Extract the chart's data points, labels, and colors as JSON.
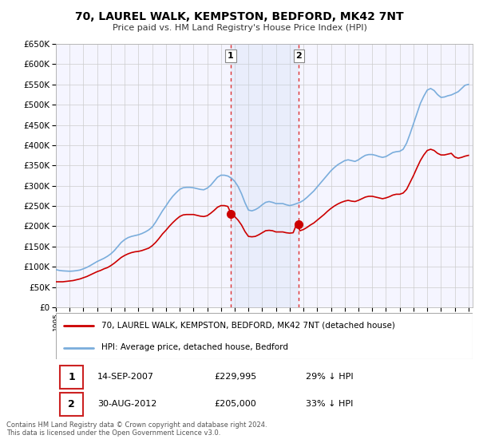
{
  "title": "70, LAUREL WALK, KEMPSTON, BEDFORD, MK42 7NT",
  "subtitle": "Price paid vs. HM Land Registry's House Price Index (HPI)",
  "ylim": [
    0,
    650000
  ],
  "yticks": [
    0,
    50000,
    100000,
    150000,
    200000,
    250000,
    300000,
    350000,
    400000,
    450000,
    500000,
    550000,
    600000,
    650000
  ],
  "xlim_start": 1995.0,
  "xlim_end": 2025.3,
  "plot_background": "#f5f5ff",
  "grid_color": "#cccccc",
  "hpi_color": "#7aaddc",
  "price_color": "#cc0000",
  "sale1_year": 2007.71,
  "sale1_price": 229995,
  "sale2_year": 2012.66,
  "sale2_price": 205000,
  "sale1_label": "1",
  "sale2_label": "2",
  "annotation1_date": "14-SEP-2007",
  "annotation1_price": "£229,995",
  "annotation1_note": "29% ↓ HPI",
  "annotation2_date": "30-AUG-2012",
  "annotation2_price": "£205,000",
  "annotation2_note": "33% ↓ HPI",
  "legend_line1": "70, LAUREL WALK, KEMPSTON, BEDFORD, MK42 7NT (detached house)",
  "legend_line2": "HPI: Average price, detached house, Bedford",
  "footer": "Contains HM Land Registry data © Crown copyright and database right 2024.\nThis data is licensed under the Open Government Licence v3.0.",
  "hpi_x": [
    1995.0,
    1995.25,
    1995.5,
    1995.75,
    1996.0,
    1996.25,
    1996.5,
    1996.75,
    1997.0,
    1997.25,
    1997.5,
    1997.75,
    1998.0,
    1998.25,
    1998.5,
    1998.75,
    1999.0,
    1999.25,
    1999.5,
    1999.75,
    2000.0,
    2000.25,
    2000.5,
    2000.75,
    2001.0,
    2001.25,
    2001.5,
    2001.75,
    2002.0,
    2002.25,
    2002.5,
    2002.75,
    2003.0,
    2003.25,
    2003.5,
    2003.75,
    2004.0,
    2004.25,
    2004.5,
    2004.75,
    2005.0,
    2005.25,
    2005.5,
    2005.75,
    2006.0,
    2006.25,
    2006.5,
    2006.75,
    2007.0,
    2007.25,
    2007.5,
    2007.75,
    2008.0,
    2008.25,
    2008.5,
    2008.75,
    2009.0,
    2009.25,
    2009.5,
    2009.75,
    2010.0,
    2010.25,
    2010.5,
    2010.75,
    2011.0,
    2011.25,
    2011.5,
    2011.75,
    2012.0,
    2012.25,
    2012.5,
    2012.75,
    2013.0,
    2013.25,
    2013.5,
    2013.75,
    2014.0,
    2014.25,
    2014.5,
    2014.75,
    2015.0,
    2015.25,
    2015.5,
    2015.75,
    2016.0,
    2016.25,
    2016.5,
    2016.75,
    2017.0,
    2017.25,
    2017.5,
    2017.75,
    2018.0,
    2018.25,
    2018.5,
    2018.75,
    2019.0,
    2019.25,
    2019.5,
    2019.75,
    2020.0,
    2020.25,
    2020.5,
    2020.75,
    2021.0,
    2021.25,
    2021.5,
    2021.75,
    2022.0,
    2022.25,
    2022.5,
    2022.75,
    2023.0,
    2023.25,
    2023.5,
    2023.75,
    2024.0,
    2024.25,
    2024.5,
    2024.75,
    2025.0
  ],
  "hpi_y": [
    93000,
    91000,
    90000,
    89500,
    89000,
    89500,
    90500,
    92000,
    95000,
    98500,
    103000,
    108000,
    113000,
    117000,
    121000,
    126000,
    132000,
    140000,
    150000,
    160000,
    167000,
    172000,
    175000,
    177000,
    179000,
    182000,
    186000,
    191000,
    198000,
    210000,
    224000,
    238000,
    250000,
    263000,
    274000,
    283000,
    291000,
    295000,
    296000,
    296000,
    295000,
    293000,
    291000,
    290000,
    294000,
    301000,
    311000,
    321000,
    326000,
    326000,
    324000,
    319000,
    311000,
    298000,
    280000,
    258000,
    240000,
    238000,
    241000,
    246000,
    253000,
    259000,
    261000,
    259000,
    256000,
    256000,
    256000,
    253000,
    251000,
    253000,
    256000,
    259000,
    264000,
    271000,
    279000,
    287000,
    297000,
    307000,
    317000,
    327000,
    337000,
    345000,
    352000,
    357000,
    362000,
    364000,
    362000,
    360000,
    364000,
    370000,
    375000,
    377000,
    377000,
    375000,
    372000,
    370000,
    372000,
    377000,
    382000,
    384000,
    385000,
    390000,
    405000,
    428000,
    453000,
    478000,
    503000,
    521000,
    536000,
    540000,
    535000,
    525000,
    518000,
    519000,
    522000,
    524000,
    528000,
    532000,
    540000,
    548000,
    550000
  ],
  "price_x": [
    1995.0,
    1995.25,
    1995.5,
    1995.75,
    1996.0,
    1996.25,
    1996.5,
    1996.75,
    1997.0,
    1997.25,
    1997.5,
    1997.75,
    1998.0,
    1998.25,
    1998.5,
    1998.75,
    1999.0,
    1999.25,
    1999.5,
    1999.75,
    2000.0,
    2000.25,
    2000.5,
    2000.75,
    2001.0,
    2001.25,
    2001.5,
    2001.75,
    2002.0,
    2002.25,
    2002.5,
    2002.75,
    2003.0,
    2003.25,
    2003.5,
    2003.75,
    2004.0,
    2004.25,
    2004.5,
    2004.75,
    2005.0,
    2005.25,
    2005.5,
    2005.75,
    2006.0,
    2006.25,
    2006.5,
    2006.75,
    2007.0,
    2007.25,
    2007.5,
    2007.75,
    2008.0,
    2008.25,
    2008.5,
    2008.75,
    2009.0,
    2009.25,
    2009.5,
    2009.75,
    2010.0,
    2010.25,
    2010.5,
    2010.75,
    2011.0,
    2011.25,
    2011.5,
    2011.75,
    2012.0,
    2012.25,
    2012.5,
    2012.75,
    2013.0,
    2013.25,
    2013.5,
    2013.75,
    2014.0,
    2014.25,
    2014.5,
    2014.75,
    2015.0,
    2015.25,
    2015.5,
    2015.75,
    2016.0,
    2016.25,
    2016.5,
    2016.75,
    2017.0,
    2017.25,
    2017.5,
    2017.75,
    2018.0,
    2018.25,
    2018.5,
    2018.75,
    2019.0,
    2019.25,
    2019.5,
    2019.75,
    2020.0,
    2020.25,
    2020.5,
    2020.75,
    2021.0,
    2021.25,
    2021.5,
    2021.75,
    2022.0,
    2022.25,
    2022.5,
    2022.75,
    2023.0,
    2023.25,
    2023.5,
    2023.75,
    2024.0,
    2024.25,
    2024.5,
    2024.75,
    2025.0
  ],
  "price_y": [
    63000,
    63000,
    63000,
    64000,
    65000,
    66000,
    68000,
    70000,
    73000,
    76000,
    80000,
    84000,
    88000,
    91000,
    95000,
    98000,
    103000,
    109000,
    116000,
    123000,
    128000,
    132000,
    135000,
    137000,
    138000,
    140000,
    143000,
    146000,
    152000,
    160000,
    170000,
    181000,
    190000,
    200000,
    209000,
    217000,
    224000,
    228000,
    229000,
    229000,
    229000,
    227000,
    225000,
    224000,
    226000,
    232000,
    239000,
    247000,
    251000,
    251000,
    249000,
    229995,
    224000,
    215000,
    203000,
    187000,
    175000,
    174000,
    175000,
    179000,
    184000,
    189000,
    190000,
    189000,
    186000,
    186000,
    186000,
    184000,
    183000,
    184000,
    205000,
    189000,
    192000,
    197000,
    203000,
    208000,
    215000,
    222000,
    229000,
    237000,
    244000,
    250000,
    255000,
    259000,
    262000,
    264000,
    262000,
    261000,
    264000,
    268000,
    272000,
    274000,
    274000,
    272000,
    270000,
    268000,
    270000,
    273000,
    277000,
    279000,
    279000,
    282000,
    291000,
    308000,
    325000,
    344000,
    362000,
    376000,
    387000,
    390000,
    387000,
    380000,
    376000,
    376000,
    378000,
    380000,
    371000,
    368000,
    370000,
    373000,
    375000
  ]
}
